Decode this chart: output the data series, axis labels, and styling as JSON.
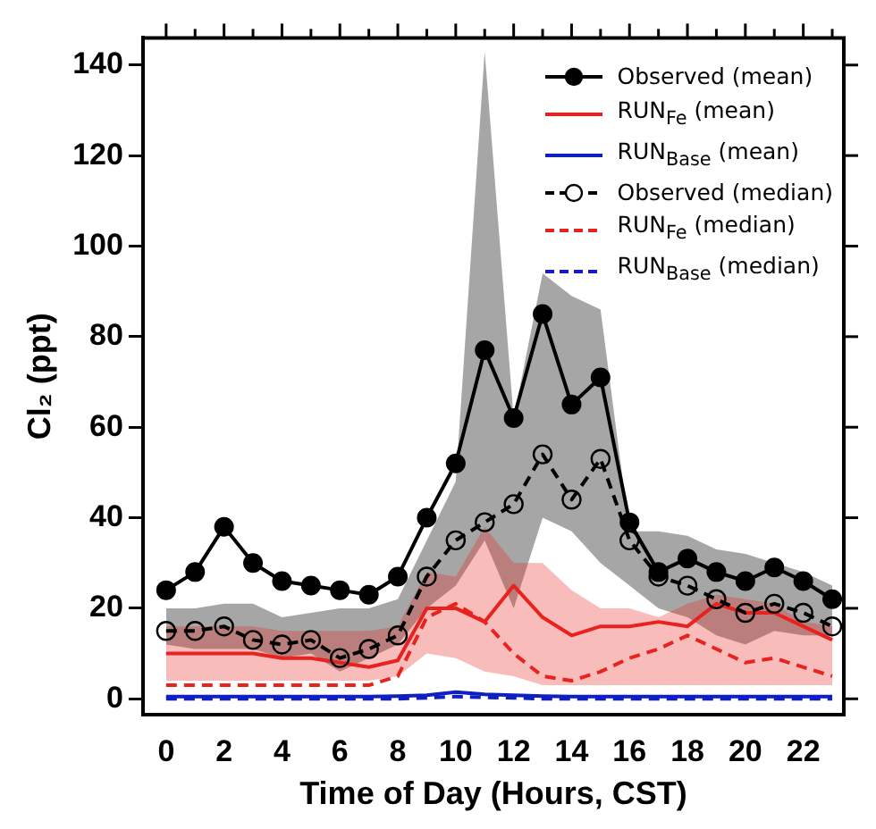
{
  "chart_data": {
    "type": "line",
    "xlabel": "Time of Day (Hours, CST)",
    "ylabel": "Cl₂ (ppt)",
    "x": [
      0,
      1,
      2,
      3,
      4,
      5,
      6,
      7,
      8,
      9,
      10,
      11,
      12,
      13,
      14,
      15,
      16,
      17,
      18,
      19,
      20,
      21,
      22,
      23
    ],
    "xlim": [
      -0.8,
      23.4
    ],
    "xticks": [
      0,
      {
        "value": 1,
        "label": null
      },
      2,
      {
        "value": 3,
        "label": null
      },
      4,
      {
        "value": 5,
        "label": null
      },
      6,
      {
        "value": 7,
        "label": null
      },
      8,
      {
        "value": 9,
        "label": null
      },
      10,
      {
        "value": 11,
        "label": null
      },
      12,
      {
        "value": 13,
        "label": null
      },
      14,
      {
        "value": 15,
        "label": null
      },
      16,
      {
        "value": 17,
        "label": null
      },
      18,
      {
        "value": 19,
        "label": null
      },
      20,
      {
        "value": 21,
        "label": null
      },
      22,
      {
        "value": 23,
        "label": null
      }
    ],
    "ylim": [
      -3.5,
      146
    ],
    "yticks": [
      0,
      20,
      40,
      60,
      80,
      100,
      120,
      140
    ],
    "grid": false,
    "legend": "top right",
    "series": [
      {
        "name": "Observed (mean)",
        "color": "#000000",
        "marker": "circle",
        "line_style": "solid",
        "values": [
          24,
          28,
          38,
          30,
          26,
          25,
          24,
          23,
          27,
          40,
          52,
          77,
          62,
          85,
          65,
          71,
          39,
          28,
          31,
          28,
          26,
          29,
          26,
          22
        ],
        "lower": [
          12,
          11,
          11,
          11,
          9,
          10,
          6,
          9,
          12,
          20,
          25,
          35,
          20,
          40,
          37,
          30,
          25,
          20,
          18,
          14,
          12,
          15,
          14,
          14
        ],
        "upper": [
          20,
          20,
          21,
          21,
          18,
          19,
          20,
          20,
          22,
          35,
          48,
          143,
          62,
          94,
          89,
          86,
          37,
          37,
          36,
          33,
          32,
          30,
          28,
          25
        ]
      },
      {
        "name": "RUN$_{Fe}$ (mean)",
        "color": "#e8221e",
        "marker": "none",
        "line_style": "solid",
        "values": [
          10,
          10,
          10,
          10,
          9,
          9,
          8,
          7,
          8.5,
          20,
          20,
          17,
          25,
          18,
          14,
          16,
          16,
          17,
          16,
          21,
          19,
          19,
          16,
          13
        ],
        "lower": [
          4,
          4,
          4,
          4,
          4,
          4,
          4,
          4,
          5,
          10,
          9,
          6,
          5,
          3,
          3,
          3,
          3,
          3,
          3,
          3,
          3,
          3,
          3,
          3
        ],
        "upper": [
          16,
          16,
          16,
          16,
          15,
          15,
          15,
          15,
          16,
          28,
          27,
          38,
          30,
          30,
          24,
          20,
          20,
          18,
          21,
          23,
          22,
          21,
          17,
          16
        ]
      },
      {
        "name": "RUN$_{Base}$ (mean)",
        "color": "#0f1fc0",
        "marker": "none",
        "line_style": "solid",
        "values": [
          0.5,
          0.5,
          0.5,
          0.5,
          0.5,
          0.5,
          0.5,
          0.5,
          0.6,
          0.8,
          1.5,
          1,
          0.8,
          0.6,
          0.5,
          0.5,
          0.5,
          0.5,
          0.5,
          0.5,
          0.5,
          0.5,
          0.5,
          0.5
        ]
      },
      {
        "name": "Observed (median)",
        "color": "#000000",
        "marker": "circle",
        "line_style": "dashed",
        "values": [
          15,
          15,
          16,
          13,
          12,
          13,
          9,
          11,
          14,
          27,
          35,
          39,
          43,
          54,
          44,
          53,
          35,
          27,
          25,
          22,
          19,
          21,
          19,
          16
        ]
      },
      {
        "name": "RUN$_{Fe}$ (median)",
        "color": "#e8221e",
        "marker": "none",
        "line_style": "dashed",
        "values": [
          3,
          3,
          3,
          3,
          3,
          3,
          3,
          3,
          5,
          18,
          21,
          17,
          10,
          5,
          4,
          6,
          9,
          11,
          14,
          11,
          8,
          9,
          7,
          5
        ]
      },
      {
        "name": "RUN$_{Base}$ (median)",
        "color": "#0f1fc0",
        "marker": "none",
        "line_style": "dashed",
        "values": [
          0,
          0,
          0,
          0,
          0,
          0,
          0,
          0,
          0,
          0.2,
          0.5,
          0.3,
          0.2,
          0,
          0,
          0,
          0,
          0,
          0,
          0,
          0,
          0,
          0,
          0
        ]
      }
    ]
  }
}
